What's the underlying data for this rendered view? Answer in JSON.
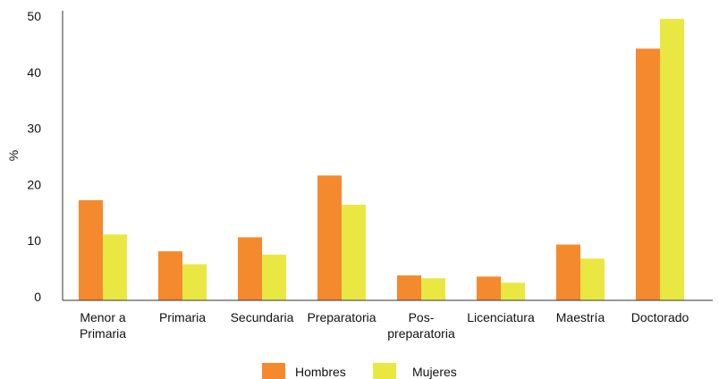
{
  "chart_data": {
    "type": "bar",
    "title": "",
    "xlabel": "",
    "ylabel": "%",
    "ylim": [
      0,
      50
    ],
    "yticks": [
      0,
      10,
      20,
      30,
      40,
      50
    ],
    "grid": false,
    "legend_position": "bottom-center",
    "categories": [
      [
        "Menor a",
        "Primaria"
      ],
      [
        "Primaria"
      ],
      [
        "Secundaria"
      ],
      [
        "Preparatoria"
      ],
      [
        "Pos-",
        "preparatoria"
      ],
      [
        "Licenciatura"
      ],
      [
        "Maestría"
      ],
      [
        "Doctorado"
      ]
    ],
    "series": [
      {
        "name": "Hombres",
        "color": "#F5892E",
        "values": [
          17.2,
          8.1,
          10.6,
          21.6,
          3.8,
          3.6,
          9.3,
          44.2
        ]
      },
      {
        "name": "Mujeres",
        "color": "#E9E843",
        "values": [
          11.1,
          5.8,
          7.5,
          16.4,
          3.3,
          2.5,
          6.8,
          49.5
        ]
      }
    ]
  }
}
